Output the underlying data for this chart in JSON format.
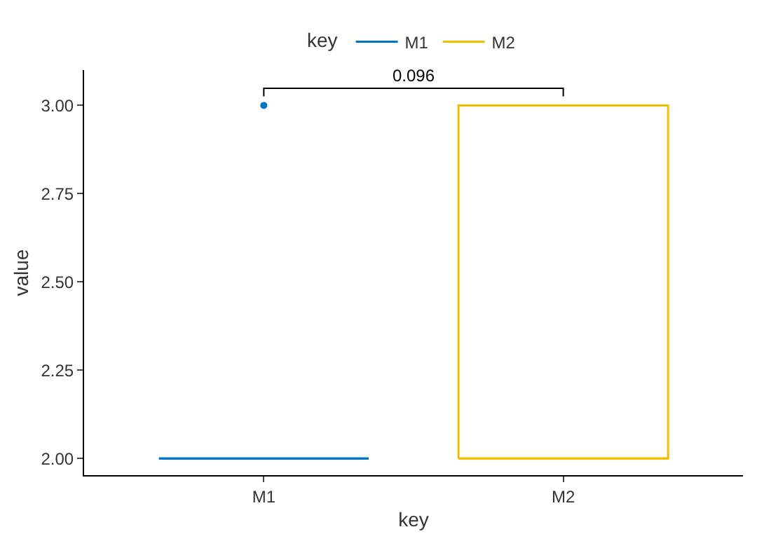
{
  "chart_data": {
    "type": "box",
    "xlabel": "key",
    "ylabel": "value",
    "legend_title": "key",
    "legend": "top",
    "categories": [
      "M1",
      "M2"
    ],
    "series": [
      {
        "name": "M1",
        "color": "#0073c2",
        "boxes": [
          {
            "low": 2,
            "q1": 2,
            "median": 2,
            "q3": 2,
            "high": 2,
            "outliers": [
              3
            ]
          },
          null
        ]
      },
      {
        "name": "M2",
        "color": "#efc000",
        "boxes": [
          null,
          {
            "low": 2,
            "q1": 2,
            "median": 2,
            "q3": 3,
            "high": 3
          }
        ]
      }
    ],
    "ylim": [
      1.953,
      3.1
    ],
    "yticks": [
      {
        "value": 2,
        "label": "2.00"
      },
      {
        "value": 2.25,
        "label": "2.25"
      },
      {
        "value": 2.5,
        "label": "2.50"
      },
      {
        "value": 2.75,
        "label": "2.75"
      },
      {
        "value": 3,
        "label": "3.00"
      }
    ],
    "annotations": [
      "0.096"
    ]
  }
}
